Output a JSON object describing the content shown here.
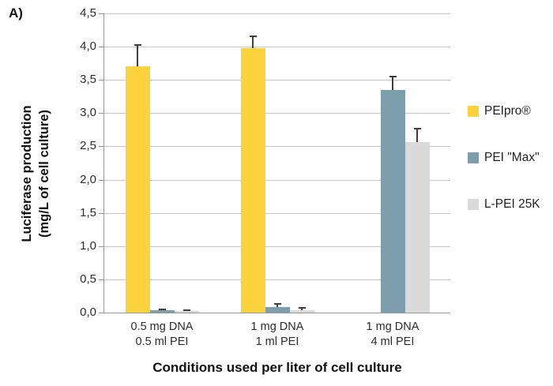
{
  "panel_label": "A)",
  "chart_data": {
    "type": "bar",
    "title": "",
    "xlabel": "Conditions used per liter of cell culture",
    "ylabel": "Luciferase production (mg/L of cell culture)",
    "ylabel_lines": [
      "Luciferase production",
      "(mg/L of cell culture)"
    ],
    "categories": [
      [
        "0.5 mg DNA",
        "0.5 ml PEI"
      ],
      [
        "1 mg DNA",
        "1 ml PEI"
      ],
      [
        "1 mg DNA",
        "4 ml PEI"
      ]
    ],
    "series": [
      {
        "name": "PEIpro®",
        "color": "#FCD33C",
        "values": [
          3.71,
          3.98,
          null
        ],
        "errors": [
          0.32,
          0.18,
          null
        ]
      },
      {
        "name": "PEI \"Max\"",
        "color": "#7D9EAC",
        "values": [
          0.03,
          0.08,
          3.35
        ],
        "errors": [
          0.02,
          0.05,
          0.2
        ]
      },
      {
        "name": "L-PEI 25K",
        "color": "#D9DAD9",
        "values": [
          0.02,
          0.04,
          2.57
        ],
        "errors": [
          0.02,
          0.03,
          0.2
        ]
      }
    ],
    "ylim": [
      0,
      4.5
    ],
    "ytick_step": 0.5,
    "ytick_labels": [
      "0,0",
      "0,5",
      "1,0",
      "1,5",
      "2,0",
      "2,5",
      "3,0",
      "3,5",
      "4,0",
      "4,5"
    ],
    "decimal_separator": ",",
    "grid": true,
    "legend_position": "right"
  },
  "style": {
    "grid_color": "#c4c4c4",
    "axis_color": "#969696",
    "error_bar_color": "#3d3d3d",
    "text_color": "#2b2b2b",
    "background": "#ffffff"
  }
}
